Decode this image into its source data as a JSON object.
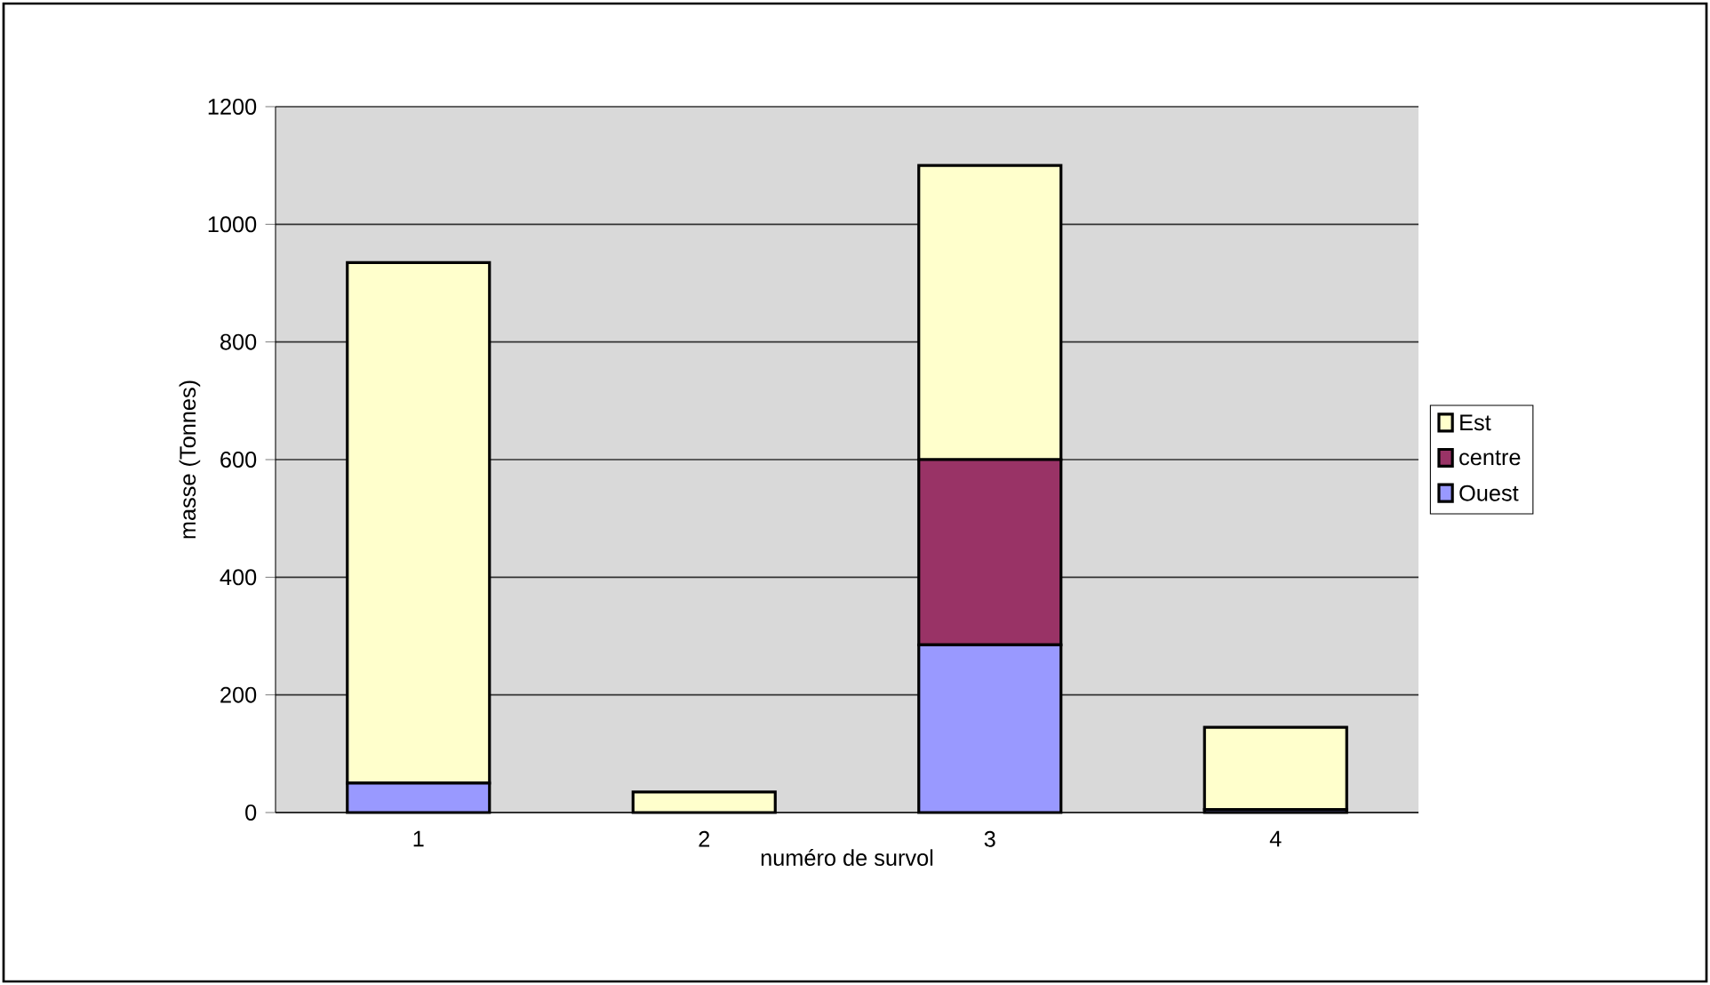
{
  "chart_data": {
    "type": "bar",
    "stacked": true,
    "xlabel": "numéro de survol",
    "ylabel": "masse (Tonnes)",
    "categories": [
      "1",
      "2",
      "3",
      "4"
    ],
    "series": [
      {
        "name": "Ouest",
        "color": "#9999ff",
        "values": [
          50,
          0,
          285,
          5
        ]
      },
      {
        "name": "centre",
        "color": "#993366",
        "values": [
          0,
          0,
          315,
          0
        ]
      },
      {
        "name": "Est",
        "color": "#ffffcc",
        "values": [
          885,
          35,
          500,
          140
        ]
      }
    ],
    "ylim": [
      0,
      1200
    ],
    "yticks": [
      0,
      200,
      400,
      600,
      800,
      1000,
      1200
    ],
    "grid": "y",
    "legend": "right"
  }
}
